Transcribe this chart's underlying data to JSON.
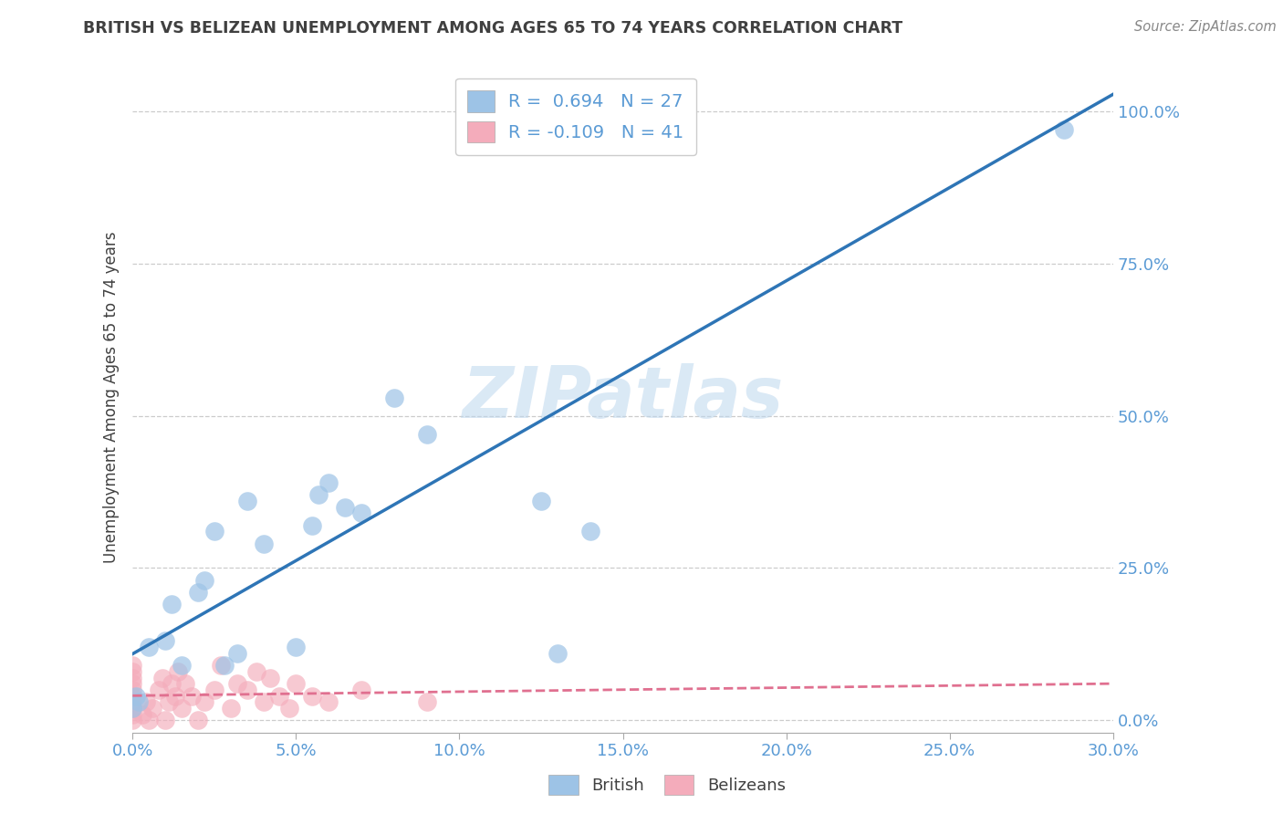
{
  "title": "BRITISH VS BELIZEAN UNEMPLOYMENT AMONG AGES 65 TO 74 YEARS CORRELATION CHART",
  "source": "Source: ZipAtlas.com",
  "ylabel_label": "Unemployment Among Ages 65 to 74 years",
  "xlim": [
    0.0,
    0.3
  ],
  "ylim": [
    -0.02,
    1.08
  ],
  "watermark": "ZIPatlas",
  "british_R": 0.694,
  "british_N": 27,
  "belizean_R": -0.109,
  "belizean_N": 41,
  "british_color": "#9DC3E6",
  "belizean_color": "#F4ACBB",
  "british_line_color": "#2E75B6",
  "belizean_line_color": "#E07090",
  "british_x": [
    0.0,
    0.001,
    0.002,
    0.005,
    0.01,
    0.012,
    0.015,
    0.02,
    0.022,
    0.025,
    0.028,
    0.032,
    0.035,
    0.04,
    0.05,
    0.055,
    0.057,
    0.06,
    0.065,
    0.07,
    0.08,
    0.09,
    0.125,
    0.13,
    0.14,
    0.155,
    0.285
  ],
  "british_y": [
    0.02,
    0.04,
    0.03,
    0.12,
    0.13,
    0.19,
    0.09,
    0.21,
    0.23,
    0.31,
    0.09,
    0.11,
    0.36,
    0.29,
    0.12,
    0.32,
    0.37,
    0.39,
    0.35,
    0.34,
    0.53,
    0.47,
    0.36,
    0.11,
    0.31,
    1.01,
    0.97
  ],
  "belizean_x": [
    0.0,
    0.0,
    0.0,
    0.0,
    0.0,
    0.0,
    0.0,
    0.0,
    0.0,
    0.0,
    0.003,
    0.004,
    0.005,
    0.006,
    0.008,
    0.009,
    0.01,
    0.011,
    0.012,
    0.013,
    0.014,
    0.015,
    0.016,
    0.018,
    0.02,
    0.022,
    0.025,
    0.027,
    0.03,
    0.032,
    0.035,
    0.038,
    0.04,
    0.042,
    0.045,
    0.048,
    0.05,
    0.055,
    0.06,
    0.07,
    0.09
  ],
  "belizean_y": [
    0.0,
    0.01,
    0.02,
    0.03,
    0.04,
    0.05,
    0.06,
    0.07,
    0.08,
    0.09,
    0.01,
    0.03,
    0.0,
    0.02,
    0.05,
    0.07,
    0.0,
    0.03,
    0.06,
    0.04,
    0.08,
    0.02,
    0.06,
    0.04,
    0.0,
    0.03,
    0.05,
    0.09,
    0.02,
    0.06,
    0.05,
    0.08,
    0.03,
    0.07,
    0.04,
    0.02,
    0.06,
    0.04,
    0.03,
    0.05,
    0.03
  ],
  "grid_color": "#CCCCCC",
  "bg_color": "#FFFFFF",
  "title_color": "#404040",
  "tick_color": "#5B9BD5",
  "legend_label_color": "#5B9BD5"
}
